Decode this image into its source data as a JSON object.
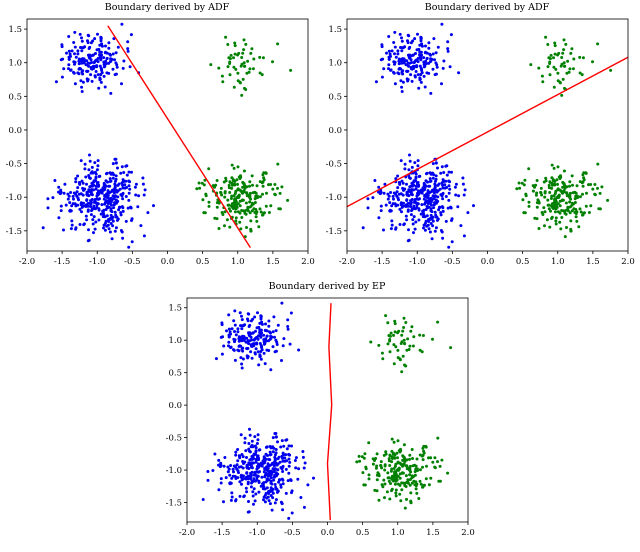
{
  "figure": {
    "background": "#ffffff"
  },
  "colors": {
    "class_negative": "#0000ee",
    "class_positive": "#008000",
    "boundary": "#ff0000",
    "axis": "#000000"
  },
  "chart_data": [
    {
      "id": "adf-left",
      "type": "scatter",
      "title": "Boundary derived by ADF",
      "xlabel": "",
      "ylabel": "",
      "xlim": [
        -2.0,
        2.0
      ],
      "ylim": [
        -1.8,
        1.65
      ],
      "grid": false,
      "legend": "none",
      "xticks": [
        -2.0,
        -1.5,
        -1.0,
        -0.5,
        0.0,
        0.5,
        1.0,
        1.5,
        2.0
      ],
      "yticks": [
        -1.5,
        -1.0,
        -0.5,
        0.0,
        0.5,
        1.0,
        1.5
      ],
      "clusters": [
        {
          "name": "blue-top-left",
          "color": "#0000ee",
          "center": [
            -1.05,
            1.02
          ],
          "std": [
            0.21,
            0.19
          ],
          "count": 200,
          "seed": 11
        },
        {
          "name": "blue-bottom-left",
          "color": "#0000ee",
          "center": [
            -0.95,
            -1.0
          ],
          "std": [
            0.29,
            0.25
          ],
          "count": 400,
          "seed": 22
        },
        {
          "name": "green-top-right",
          "color": "#008000",
          "center": [
            1.05,
            1.0
          ],
          "std": [
            0.19,
            0.2
          ],
          "count": 55,
          "seed": 33
        },
        {
          "name": "green-bottom-right",
          "color": "#008000",
          "center": [
            1.05,
            -1.02
          ],
          "std": [
            0.25,
            0.23
          ],
          "count": 230,
          "seed": 44
        }
      ],
      "boundary": {
        "color": "#ff0000",
        "points": [
          [
            -0.85,
            1.55
          ],
          [
            1.18,
            -1.75
          ]
        ]
      }
    },
    {
      "id": "adf-right",
      "type": "scatter",
      "title": "Boundary derived by ADF",
      "xlabel": "",
      "ylabel": "",
      "xlim": [
        -2.0,
        2.0
      ],
      "ylim": [
        -1.8,
        1.65
      ],
      "grid": false,
      "legend": "none",
      "xticks": [
        -2.0,
        -1.5,
        -1.0,
        -0.5,
        0.0,
        0.5,
        1.0,
        1.5,
        2.0
      ],
      "yticks": [
        -1.5,
        -1.0,
        -0.5,
        0.0,
        0.5,
        1.0,
        1.5
      ],
      "clusters": [
        {
          "name": "blue-top-left",
          "color": "#0000ee",
          "center": [
            -1.05,
            1.02
          ],
          "std": [
            0.21,
            0.19
          ],
          "count": 200,
          "seed": 11
        },
        {
          "name": "blue-bottom-left",
          "color": "#0000ee",
          "center": [
            -0.95,
            -1.0
          ],
          "std": [
            0.29,
            0.25
          ],
          "count": 400,
          "seed": 22
        },
        {
          "name": "green-top-right",
          "color": "#008000",
          "center": [
            1.05,
            1.0
          ],
          "std": [
            0.19,
            0.2
          ],
          "count": 55,
          "seed": 33
        },
        {
          "name": "green-bottom-right",
          "color": "#008000",
          "center": [
            1.05,
            -1.02
          ],
          "std": [
            0.25,
            0.23
          ],
          "count": 230,
          "seed": 44
        }
      ],
      "boundary": {
        "color": "#ff0000",
        "points": [
          [
            -2.0,
            -1.14
          ],
          [
            2.0,
            1.08
          ]
        ]
      }
    },
    {
      "id": "ep-bottom",
      "type": "scatter",
      "title": "Boundary derived by EP",
      "xlabel": "",
      "ylabel": "",
      "xlim": [
        -2.0,
        2.0
      ],
      "ylim": [
        -1.8,
        1.65
      ],
      "grid": false,
      "legend": "none",
      "xticks": [
        -2.0,
        -1.5,
        -1.0,
        -0.5,
        0.0,
        0.5,
        1.0,
        1.5,
        2.0
      ],
      "yticks": [
        -1.5,
        -1.0,
        -0.5,
        0.0,
        0.5,
        1.0,
        1.5
      ],
      "clusters": [
        {
          "name": "blue-top-left",
          "color": "#0000ee",
          "center": [
            -1.05,
            1.02
          ],
          "std": [
            0.21,
            0.19
          ],
          "count": 200,
          "seed": 11
        },
        {
          "name": "blue-bottom-left",
          "color": "#0000ee",
          "center": [
            -0.95,
            -1.0
          ],
          "std": [
            0.29,
            0.25
          ],
          "count": 400,
          "seed": 22
        },
        {
          "name": "green-top-right",
          "color": "#008000",
          "center": [
            1.05,
            1.0
          ],
          "std": [
            0.19,
            0.2
          ],
          "count": 55,
          "seed": 33
        },
        {
          "name": "green-bottom-right",
          "color": "#008000",
          "center": [
            1.05,
            -1.02
          ],
          "std": [
            0.25,
            0.23
          ],
          "count": 230,
          "seed": 44
        }
      ],
      "boundary": {
        "color": "#ff0000",
        "points": [
          [
            0.05,
            1.57
          ],
          [
            0.02,
            0.9
          ],
          [
            0.06,
            0.0
          ],
          [
            0.0,
            -0.9
          ],
          [
            0.04,
            -1.77
          ]
        ]
      }
    }
  ]
}
